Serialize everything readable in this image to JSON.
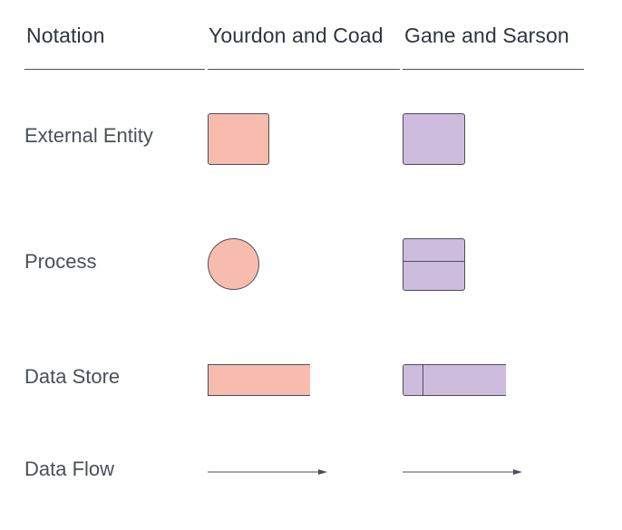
{
  "header": {
    "notation": "Notation",
    "yourdon_coad": "Yourdon and Coad",
    "gane_sarson": "Gane and Sarson"
  },
  "rows": [
    {
      "label": "External Entity"
    },
    {
      "label": "Process"
    },
    {
      "label": "Data Store"
    },
    {
      "label": "Data Flow"
    }
  ],
  "colors": {
    "yourdon_fill": "#f8bcae",
    "gane_sarson_fill": "#cdbcdd",
    "stroke": "#4a4f5a",
    "text": "#3a3f4a"
  }
}
